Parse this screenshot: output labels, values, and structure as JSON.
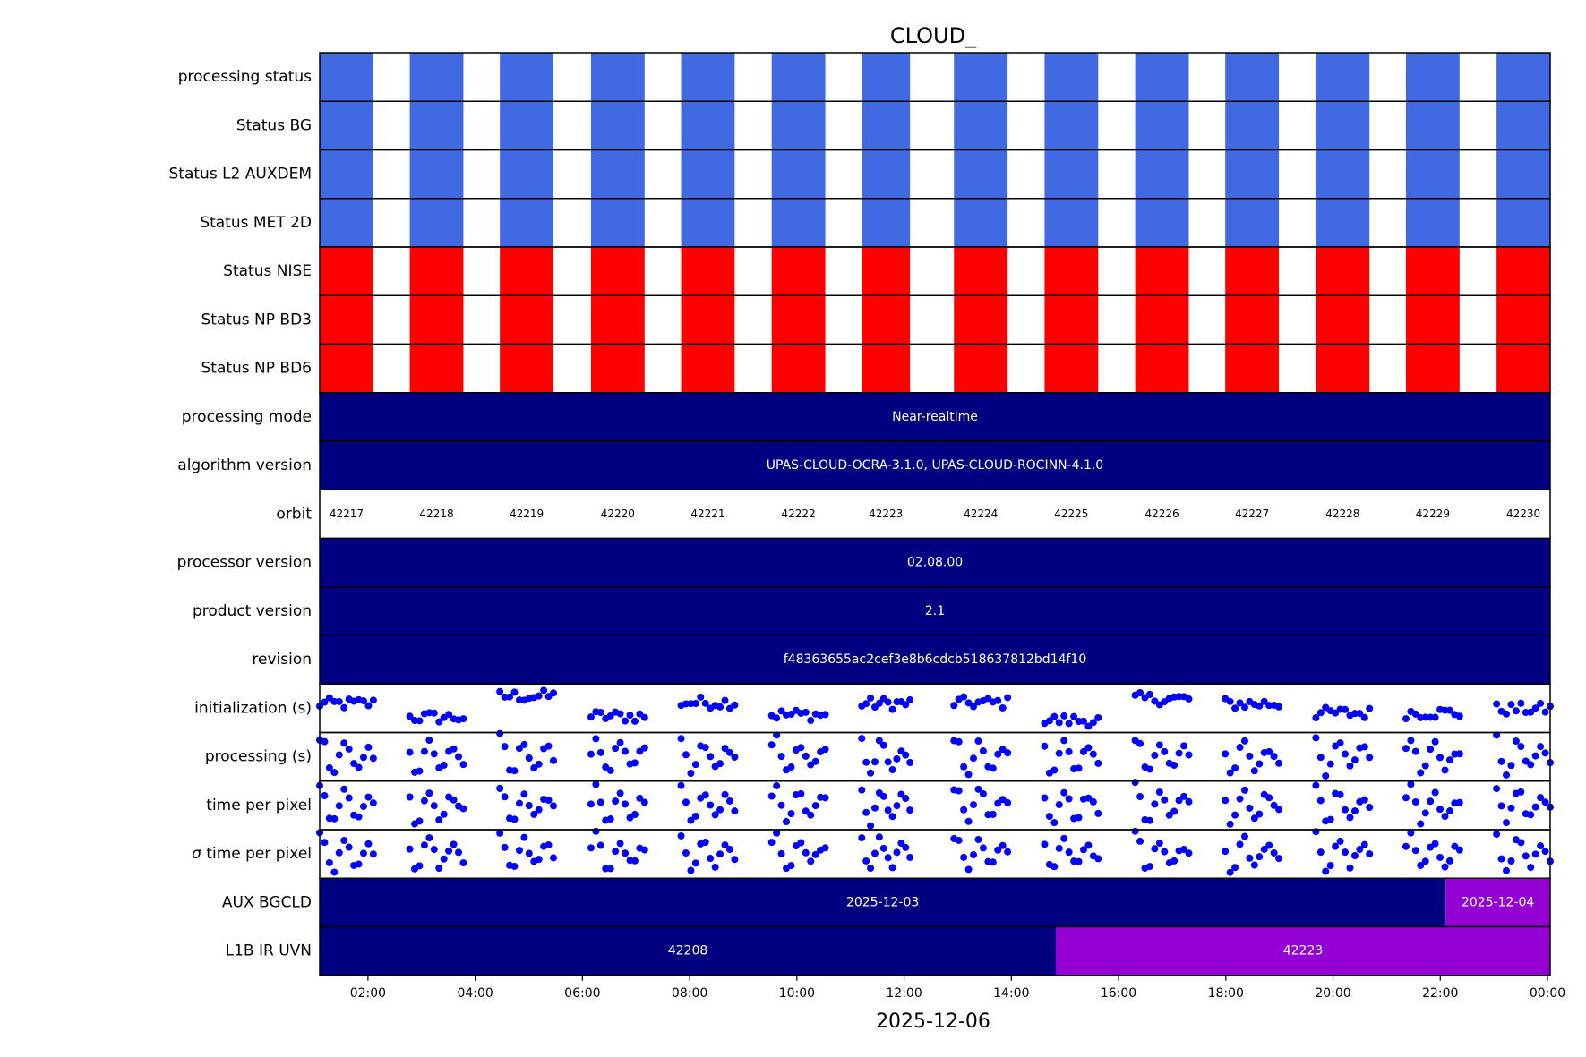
{
  "chart_data": {
    "type": "timeline",
    "title": "CLOUD_",
    "xlabel": "2025-12-06",
    "x_ticks": [
      "02:00",
      "04:00",
      "06:00",
      "08:00",
      "10:00",
      "12:00",
      "14:00",
      "16:00",
      "18:00",
      "20:00",
      "22:00",
      "00:00"
    ],
    "x_tick_hours": [
      2,
      4,
      6,
      8,
      10,
      12,
      14,
      16,
      18,
      20,
      22,
      24
    ],
    "x_range_hours": [
      1.1,
      24.05
    ],
    "colors": {
      "ok": "#4169e1",
      "error": "#ff0000",
      "primary": "#000080",
      "secondary": "#9400d3",
      "marker": "#0000ff",
      "axis": "#000000",
      "text_on_dark": "#ffffff"
    },
    "orbits": [
      {
        "orbit": "42217",
        "start": 1.1,
        "end": 2.1,
        "label_at": 1.6
      },
      {
        "orbit": "42218",
        "start": 2.78,
        "end": 3.78,
        "label_at": 3.28
      },
      {
        "orbit": "42219",
        "start": 4.46,
        "end": 5.46,
        "label_at": 4.96
      },
      {
        "orbit": "42220",
        "start": 6.16,
        "end": 7.16,
        "label_at": 6.66
      },
      {
        "orbit": "42221",
        "start": 7.84,
        "end": 8.84,
        "label_at": 8.34
      },
      {
        "orbit": "42222",
        "start": 9.53,
        "end": 10.53,
        "label_at": 10.03
      },
      {
        "orbit": "42223",
        "start": 11.21,
        "end": 12.11,
        "label_at": 11.66
      },
      {
        "orbit": "42224",
        "start": 12.93,
        "end": 13.93,
        "label_at": 13.43
      },
      {
        "orbit": "42225",
        "start": 14.62,
        "end": 15.62,
        "label_at": 15.12
      },
      {
        "orbit": "42226",
        "start": 16.31,
        "end": 17.31,
        "label_at": 16.81
      },
      {
        "orbit": "42227",
        "start": 17.99,
        "end": 18.99,
        "label_at": 18.49
      },
      {
        "orbit": "42228",
        "start": 19.68,
        "end": 20.68,
        "label_at": 20.18
      },
      {
        "orbit": "42229",
        "start": 21.36,
        "end": 22.36,
        "label_at": 21.86
      },
      {
        "orbit": "42230",
        "start": 23.05,
        "end": 24.05,
        "label_at": 23.55
      }
    ],
    "status_rows": [
      {
        "label": "processing status",
        "status": "ok"
      },
      {
        "label": "Status BG",
        "status": "ok"
      },
      {
        "label": "Status L2  AUXDEM",
        "status": "ok"
      },
      {
        "label": "Status MET 2D",
        "status": "ok"
      },
      {
        "label": "Status NISE",
        "status": "error"
      },
      {
        "label": "Status NP BD3",
        "status": "error"
      },
      {
        "label": "Status NP BD6",
        "status": "error"
      }
    ],
    "text_rows": [
      {
        "label": "processing mode",
        "segments": [
          {
            "text": "Near-realtime",
            "start": 1.1,
            "end": 24.05,
            "color": "primary"
          }
        ]
      },
      {
        "label": "algorithm version",
        "segments": [
          {
            "text": "UPAS-CLOUD-OCRA-3.1.0, UPAS-CLOUD-ROCINN-4.1.0",
            "start": 1.1,
            "end": 24.05,
            "color": "primary"
          }
        ]
      }
    ],
    "orbit_row_label": "orbit",
    "text_rows_2": [
      {
        "label": "processor version",
        "segments": [
          {
            "text": "02.08.00",
            "start": 1.1,
            "end": 24.05,
            "color": "primary"
          }
        ]
      },
      {
        "label": "product version",
        "segments": [
          {
            "text": "2.1",
            "start": 1.1,
            "end": 24.05,
            "color": "primary"
          }
        ]
      },
      {
        "label": "revision",
        "segments": [
          {
            "text": "f48363655ac2cef3e8b6cdcb518637812bd14f10",
            "start": 1.1,
            "end": 24.05,
            "color": "primary"
          }
        ]
      }
    ],
    "scatter_rows": [
      {
        "label": "initialization (s)",
        "key": "init"
      },
      {
        "label": "processing (s)",
        "key": "proc"
      },
      {
        "label": "time per pixel",
        "key": "tpp"
      },
      {
        "label": "σ time per pixel",
        "key": "sigma",
        "label_prefix": "σ",
        "label_rest": " time per pixel"
      }
    ],
    "text_rows_3": [
      {
        "label": "AUX BGCLD",
        "segments": [
          {
            "text": "2025-12-03",
            "start": 1.1,
            "end": 22.1,
            "color": "primary"
          },
          {
            "text": "2025-12-04",
            "start": 22.1,
            "end": 24.05,
            "color": "secondary"
          }
        ]
      },
      {
        "label": "L1B IR UVN",
        "segments": [
          {
            "text": "42208",
            "start": 1.1,
            "end": 14.83,
            "color": "primary"
          },
          {
            "text": "42223",
            "start": 14.83,
            "end": 24.05,
            "color": "secondary"
          }
        ]
      }
    ]
  }
}
